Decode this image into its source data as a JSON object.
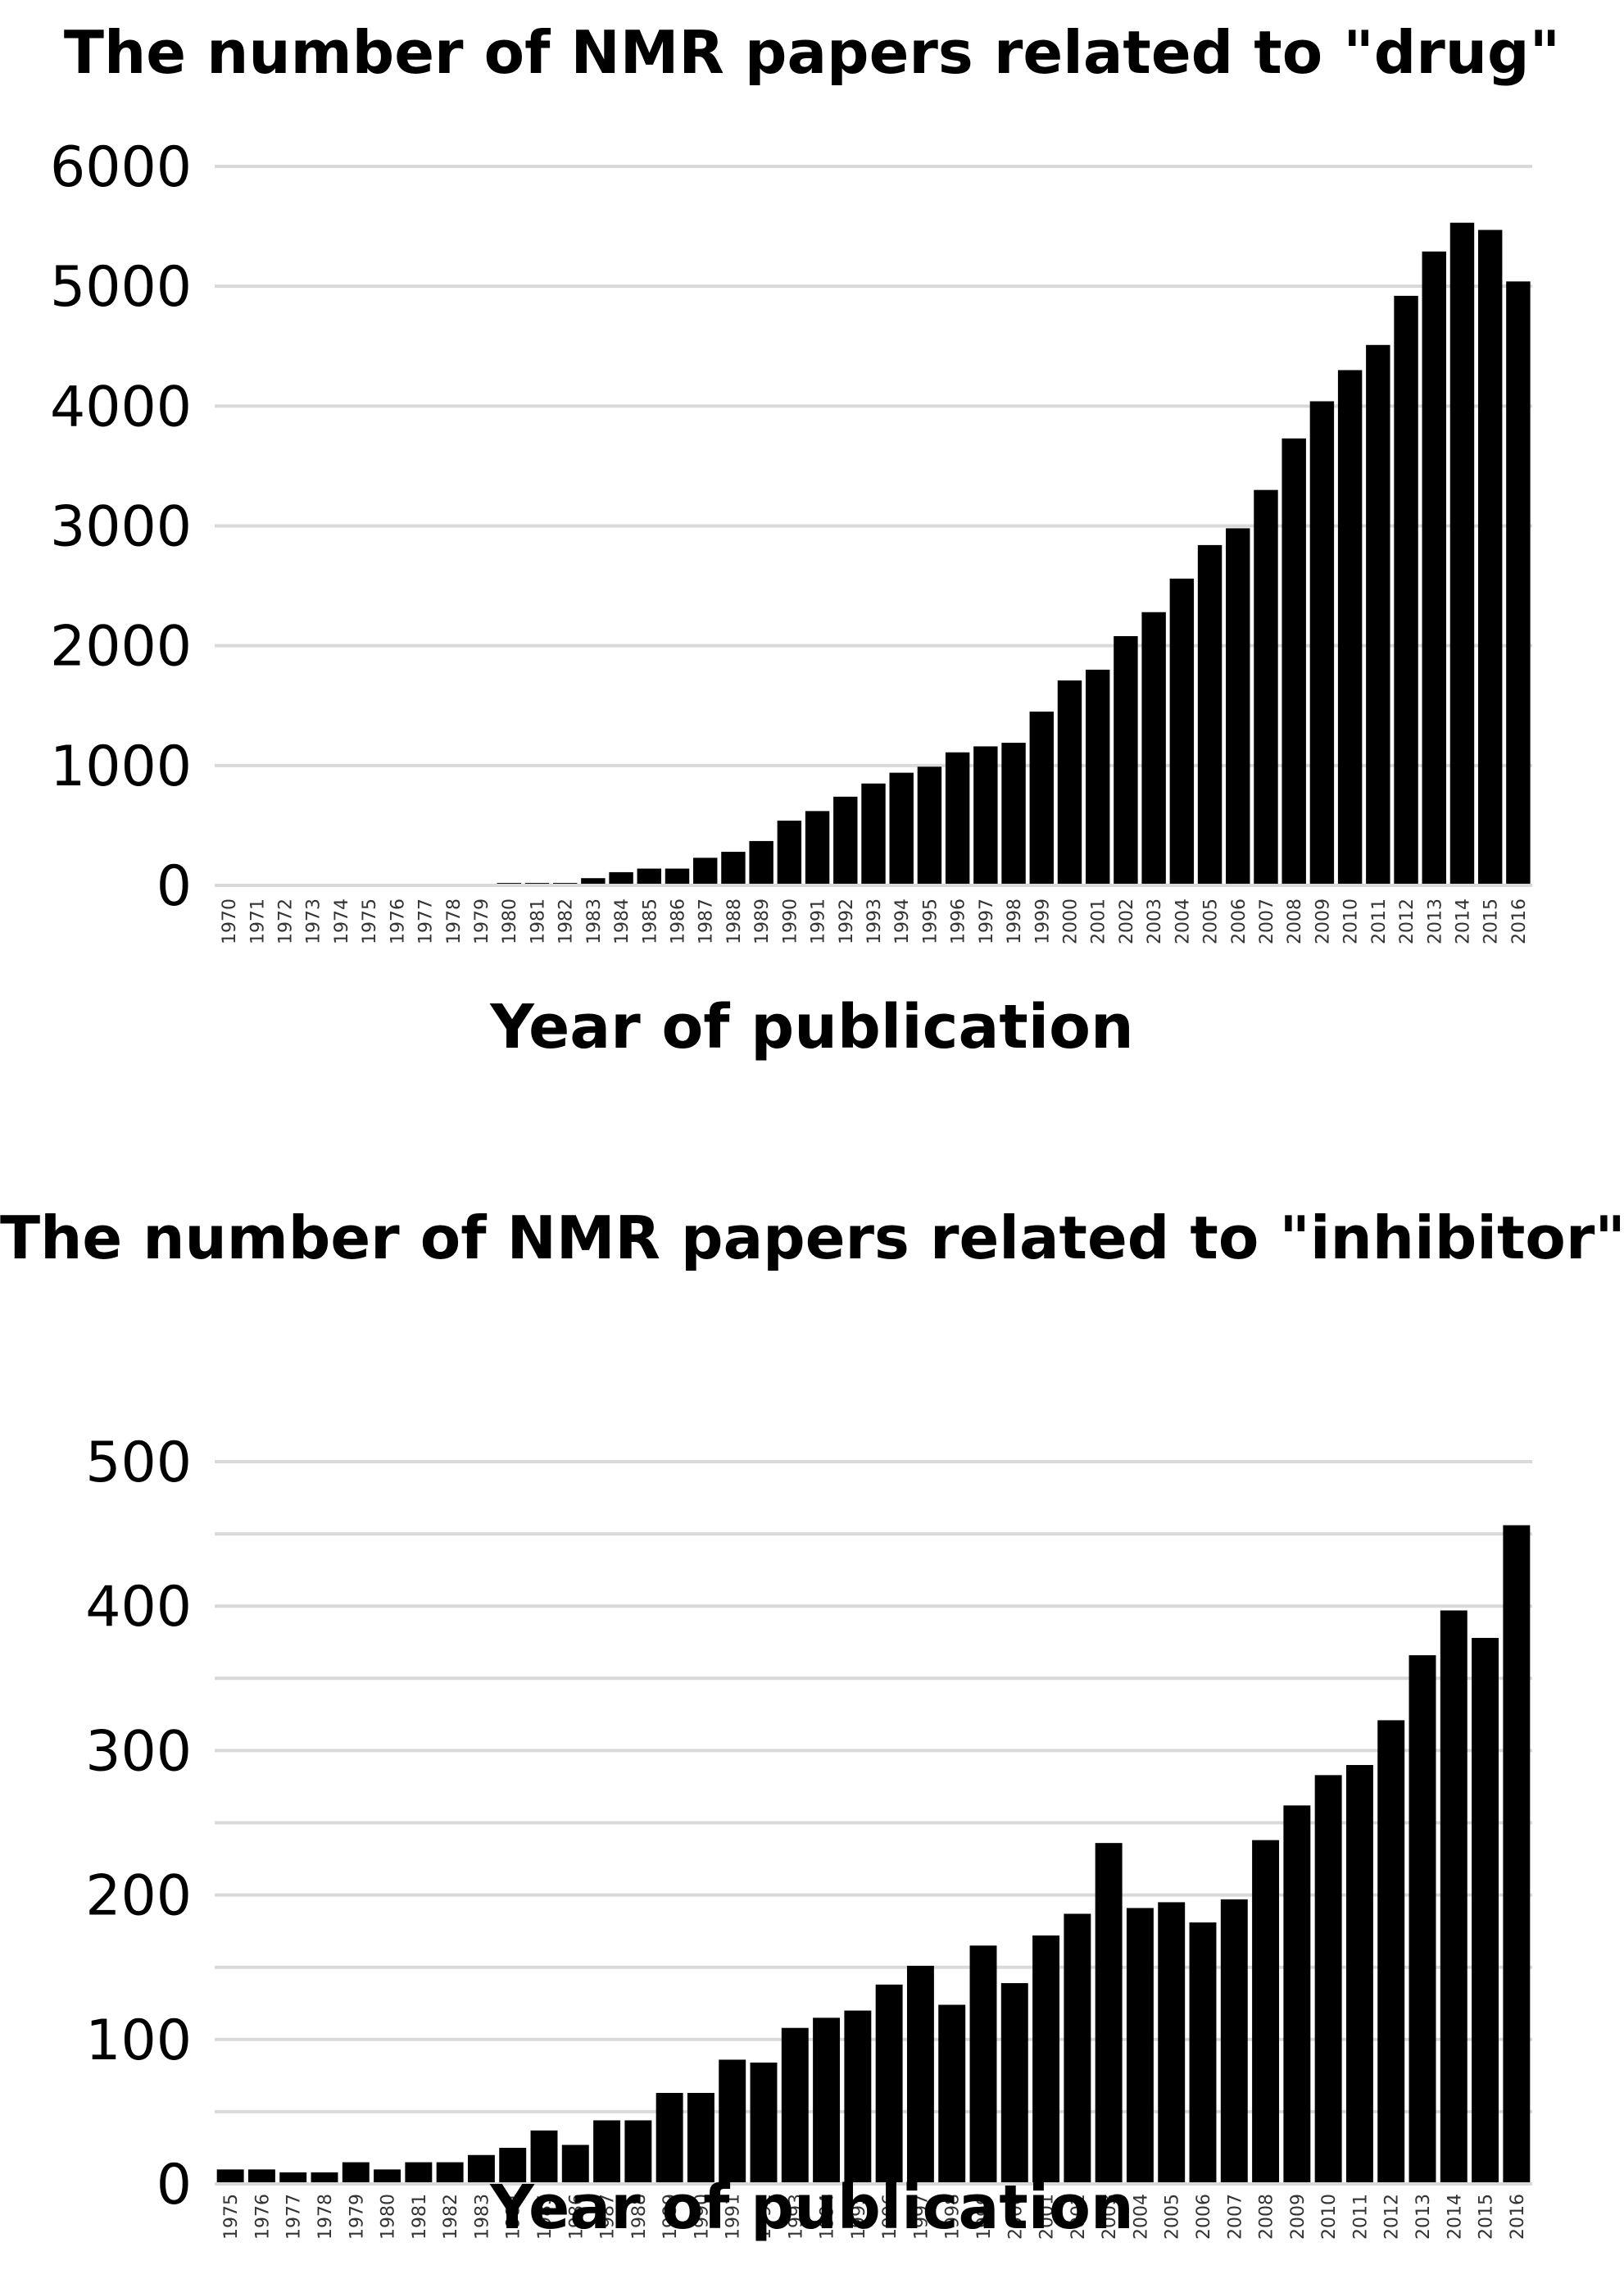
{
  "chart_data": [
    {
      "type": "bar",
      "title": "The number of NMR papers related to \"drug\"",
      "xlabel": "Year of publication",
      "ylabel": "",
      "ylim": [
        0,
        6000
      ],
      "yticks": [
        "0",
        "1000",
        "2000",
        "3000",
        "4000",
        "5000",
        "6000"
      ],
      "grid": true,
      "bar_color": "#000000",
      "grid_color": "#d9d9d9",
      "categories": [
        "1970",
        "1971",
        "1972",
        "1973",
        "1974",
        "1975",
        "1976",
        "1977",
        "1978",
        "1979",
        "1980",
        "1981",
        "1982",
        "1983",
        "1984",
        "1985",
        "1986",
        "1987",
        "1988",
        "1989",
        "1990",
        "1991",
        "1992",
        "1993",
        "1994",
        "1995",
        "1996",
        "1997",
        "1998",
        "1999",
        "2000",
        "2001",
        "2002",
        "2003",
        "2004",
        "2005",
        "2006",
        "2007",
        "2008",
        "2009",
        "2010",
        "2011",
        "2012",
        "2013",
        "2014",
        "2015",
        "2016"
      ],
      "values": [
        0,
        0,
        0,
        0,
        0,
        0,
        0,
        0,
        0,
        10,
        20,
        20,
        20,
        60,
        110,
        140,
        140,
        230,
        280,
        370,
        540,
        620,
        740,
        850,
        940,
        990,
        1110,
        1160,
        1190,
        1450,
        1710,
        1800,
        2080,
        2280,
        2560,
        2840,
        2980,
        3300,
        3730,
        4040,
        4300,
        4510,
        4920,
        5290,
        5530,
        5470,
        5040
      ]
    },
    {
      "type": "bar",
      "title": "The number of NMR papers related to \"inhibitor\"",
      "xlabel": "Year of publication",
      "ylabel": "",
      "ylim": [
        0,
        500
      ],
      "yticks": [
        "0",
        "100",
        "200",
        "300",
        "400",
        "500"
      ],
      "grid": true,
      "bar_color": "#000000",
      "grid_color": "#d9d9d9",
      "categories": [
        "1975",
        "1976",
        "1977",
        "1978",
        "1979",
        "1980",
        "1981",
        "1982",
        "1983",
        "1984",
        "1985",
        "1986",
        "1987",
        "1988",
        "1989",
        "1990",
        "1991",
        "1992",
        "1993",
        "1994",
        "1995",
        "1996",
        "1997",
        "1998",
        "1999",
        "2000",
        "2001",
        "2002",
        "2003",
        "2004",
        "2005",
        "2006",
        "2007",
        "2008",
        "2009",
        "2010",
        "2011",
        "2012",
        "2013",
        "2014",
        "2015",
        "2016"
      ],
      "values": [
        10,
        10,
        8,
        8,
        15,
        10,
        15,
        15,
        20,
        25,
        37,
        27,
        44,
        44,
        63,
        63,
        86,
        84,
        108,
        115,
        120,
        138,
        151,
        124,
        165,
        139,
        172,
        187,
        236,
        191,
        195,
        181,
        197,
        238,
        262,
        283,
        290,
        321,
        366,
        397,
        378,
        456
      ]
    }
  ]
}
